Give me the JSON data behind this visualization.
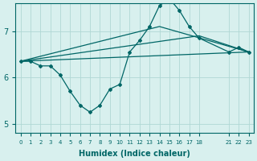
{
  "xlabel": "Humidex (Indice chaleur)",
  "ylabel": "",
  "bg_color": "#d8f0ee",
  "line_color": "#006666",
  "grid_color": "#b0d8d4",
  "xtick_positions": [
    0,
    1,
    2,
    3,
    4,
    5,
    6,
    7,
    8,
    9,
    10,
    11,
    12,
    13,
    14,
    15,
    16,
    17,
    18,
    21,
    22,
    23
  ],
  "xtick_labels": [
    "0",
    "1",
    "2",
    "3",
    "4",
    "5",
    "6",
    "7",
    "8",
    "9",
    "10",
    "11",
    "12",
    "13",
    "14",
    "15",
    "16",
    "17",
    "18",
    "21",
    "22",
    "23"
  ],
  "ylim": [
    4.8,
    7.6
  ],
  "yticks": [
    5,
    6,
    7
  ],
  "line1_x": [
    0,
    1,
    2,
    3,
    4,
    5,
    6,
    7,
    8,
    9,
    10,
    11,
    12,
    13,
    14,
    15,
    16,
    17,
    18,
    21,
    22,
    23
  ],
  "line1_y": [
    6.35,
    6.35,
    6.25,
    6.25,
    6.05,
    5.7,
    5.4,
    5.25,
    5.4,
    5.75,
    5.85,
    6.55,
    6.8,
    7.1,
    7.55,
    7.7,
    7.45,
    7.1,
    6.85,
    6.55,
    6.65,
    6.55
  ],
  "line2_x": [
    0,
    23
  ],
  "line2_y": [
    6.35,
    6.55
  ],
  "line3_x": [
    0,
    18,
    23
  ],
  "line3_y": [
    6.35,
    6.9,
    6.55
  ],
  "line4_x": [
    0,
    14,
    23
  ],
  "line4_y": [
    6.35,
    7.1,
    6.55
  ]
}
